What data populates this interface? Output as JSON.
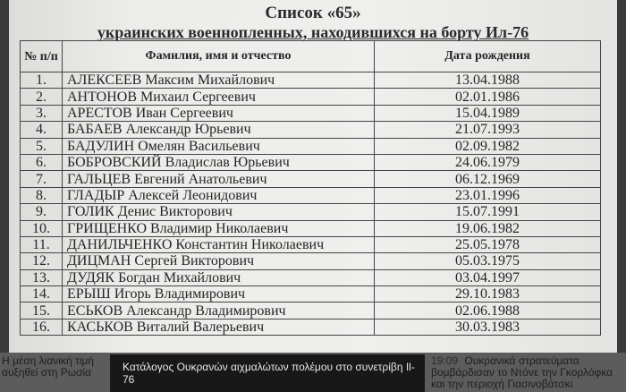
{
  "document": {
    "title": "Список «65»",
    "subtitle": "украинских военнопленных, находившихся на борту Ил-76",
    "columns": [
      "№ п/п",
      "Фамилия, имя и отчество",
      "Дата рождения"
    ],
    "rows": [
      {
        "num": "1.",
        "name": "АЛЕКСЕЕВ Максим Михайлович",
        "date": "13.04.1988"
      },
      {
        "num": "2.",
        "name": "АНТОНОВ Михаил Сергеевич",
        "date": "02.01.1986"
      },
      {
        "num": "3.",
        "name": "АРЕСТОВ Иван Сергеевич",
        "date": "15.04.1989"
      },
      {
        "num": "4.",
        "name": "БАБАЕВ Александр Юрьевич",
        "date": "21.07.1993"
      },
      {
        "num": "5.",
        "name": "БАДУЛИН Омелян Васильевич",
        "date": "02.09.1982"
      },
      {
        "num": "6.",
        "name": "БОБРОВСКИЙ Владислав Юрьевич",
        "date": "24.06.1979"
      },
      {
        "num": "7.",
        "name": "ГАЛЬЦЕВ Евгений Анатольевич",
        "date": "06.12.1969"
      },
      {
        "num": "8.",
        "name": "ГЛАДЫР Алексей Леонидович",
        "date": "23.01.1996"
      },
      {
        "num": "9.",
        "name": "ГОЛИК Денис Викторович",
        "date": "15.07.1991"
      },
      {
        "num": "10.",
        "name": "ГРИЩЕНКО Владимир Николаевич",
        "date": "19.06.1982"
      },
      {
        "num": "11.",
        "name": "ДАНИЛЬЧЕНКО Константин Николаевич",
        "date": "25.05.1978"
      },
      {
        "num": "12.",
        "name": "ДИЦМАН Сергей Викторович",
        "date": "05.03.1975"
      },
      {
        "num": "13.",
        "name": "ДУДЯК Богдан Михайлович",
        "date": "03.04.1997"
      },
      {
        "num": "14.",
        "name": "ЕРЫШ Игорь Владимирович",
        "date": "29.10.1983"
      },
      {
        "num": "15.",
        "name": "ЕСЬКОВ Александр Владимирович",
        "date": "02.06.1988"
      },
      {
        "num": "16.",
        "name": "КАСЬКОВ Виталий Валерьевич",
        "date": "30.03.1983"
      }
    ]
  },
  "news_left": {
    "line1": "Η μέση λιανική τιμή",
    "line2": "αυξηθεί στη Ρωσία"
  },
  "news_right": {
    "time": "19:09",
    "line1": "Ουκρανικά στρατεύματα βομβάρδισαν το Ντόνε",
    "line2": "την Γκορλόφκα και την περιοχή Γιασινοβάτσκι"
  },
  "caption": "Κατάλογος Ουκρανών αιχμαλώτων πολέμου στο συνετρίβη Il-76"
}
